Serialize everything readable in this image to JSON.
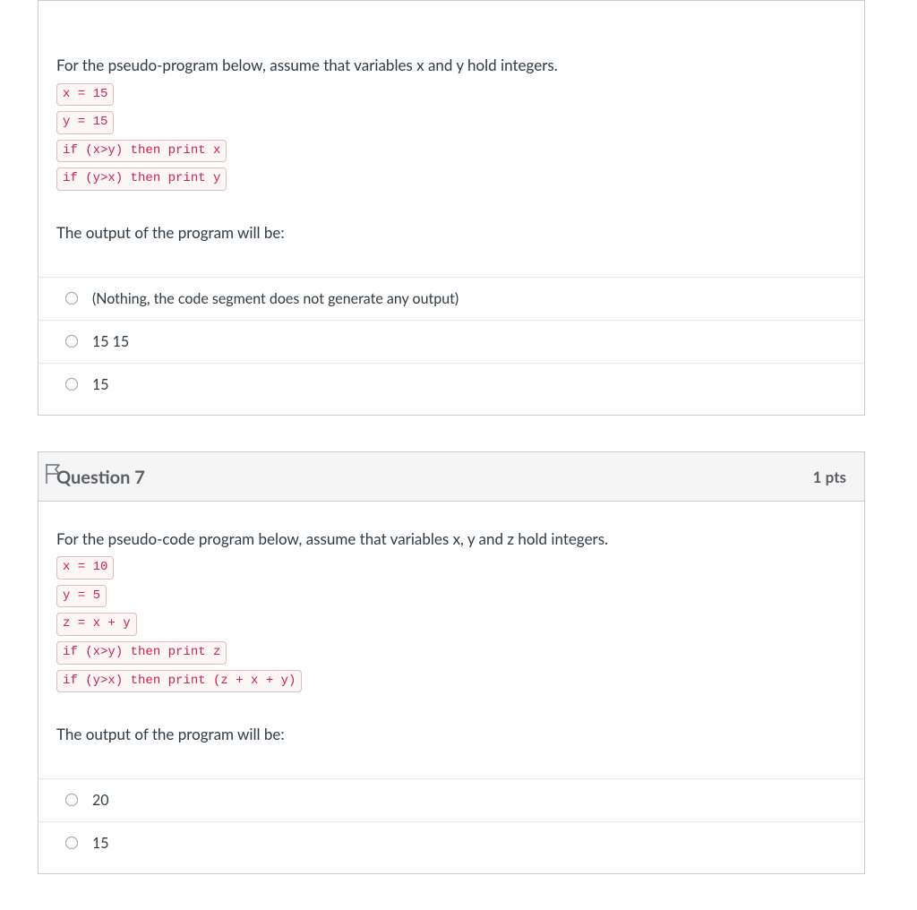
{
  "colors": {
    "border": "#c7cdd1",
    "answer_divider": "#e5e8ea",
    "code_border": "#eab9b9",
    "code_bg": "#fdf6f6",
    "code_text": "#c7254e",
    "text": "#2d3b45",
    "header_text": "#595e63",
    "header_bg": "#f5f5f5",
    "radio_border": "#9aa0a6",
    "flag_outline": "#67707a"
  },
  "questions": [
    {
      "id": "q6",
      "show_header": false,
      "show_flag": false,
      "title": "",
      "pts": "",
      "intro_text": "For the pseudo-program below, assume that variables x and y hold integers.",
      "code_lines": [
        "x = 15",
        "y = 15",
        "if (x>y) then print x",
        "if (y>x) then print y"
      ],
      "followup_text": "The output of the program will be:",
      "answers": [
        "(Nothing, the code segment does not generate any output)",
        "15 15",
        "15"
      ]
    },
    {
      "id": "q7",
      "show_header": true,
      "show_flag": true,
      "title": "Question 7",
      "pts": "1 pts",
      "intro_text": "For the pseudo-code program below, assume that variables x, y and z hold integers.",
      "code_lines": [
        "x = 10",
        "y = 5",
        "z = x + y",
        "if (x>y) then print z",
        "if (y>x) then print (z + x + y)"
      ],
      "followup_text": "The output of the program will be:",
      "answers": [
        "20",
        "15"
      ]
    }
  ]
}
